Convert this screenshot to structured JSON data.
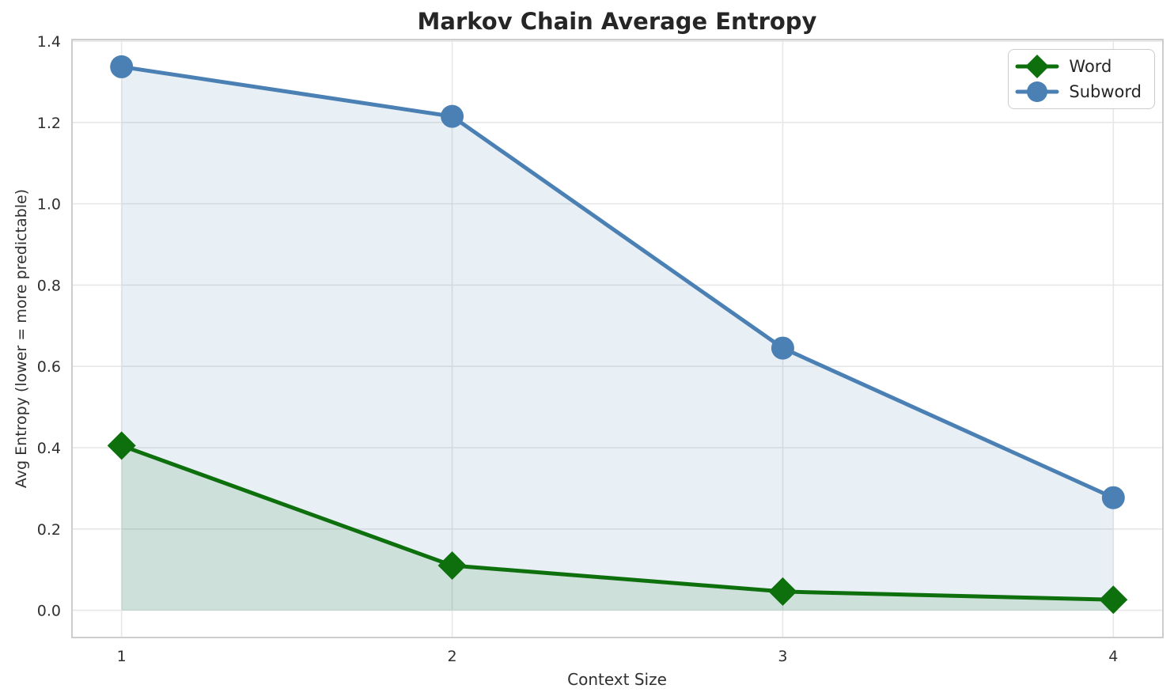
{
  "chart_data": {
    "type": "line",
    "title": "Markov Chain Average Entropy",
    "xlabel": "Context Size",
    "ylabel": "Avg Entropy (lower = more predictable)",
    "x": [
      1,
      2,
      3,
      4
    ],
    "series": [
      {
        "name": "Word",
        "values": [
          0.405,
          0.11,
          0.046,
          0.026
        ],
        "color": "#0d700d",
        "marker": "diamond",
        "fill_to_zero": true,
        "fill_alpha": 0.12
      },
      {
        "name": "Subword",
        "values": [
          1.337,
          1.215,
          0.645,
          0.277
        ],
        "color": "#4b80b5",
        "marker": "circle",
        "fill_to_zero": true,
        "fill_alpha": 0.13
      }
    ],
    "xlim": [
      0.85,
      4.15
    ],
    "ylim": [
      -0.067,
      1.404
    ],
    "xticks": [
      1,
      2,
      3,
      4
    ],
    "xticklabels": [
      "1",
      "2",
      "3",
      "4"
    ],
    "yticks": [
      0.0,
      0.2,
      0.4,
      0.6,
      0.8,
      1.0,
      1.2,
      1.4
    ],
    "yticklabels": [
      "0.0",
      "0.2",
      "0.4",
      "0.6",
      "0.8",
      "1.0",
      "1.2",
      "1.4"
    ],
    "grid": true,
    "grid_color": "#e7e7e7",
    "spine_color": "#cdcdcd",
    "tick_color": "#303030",
    "legend_position": "top-right",
    "line_width": 5
  }
}
